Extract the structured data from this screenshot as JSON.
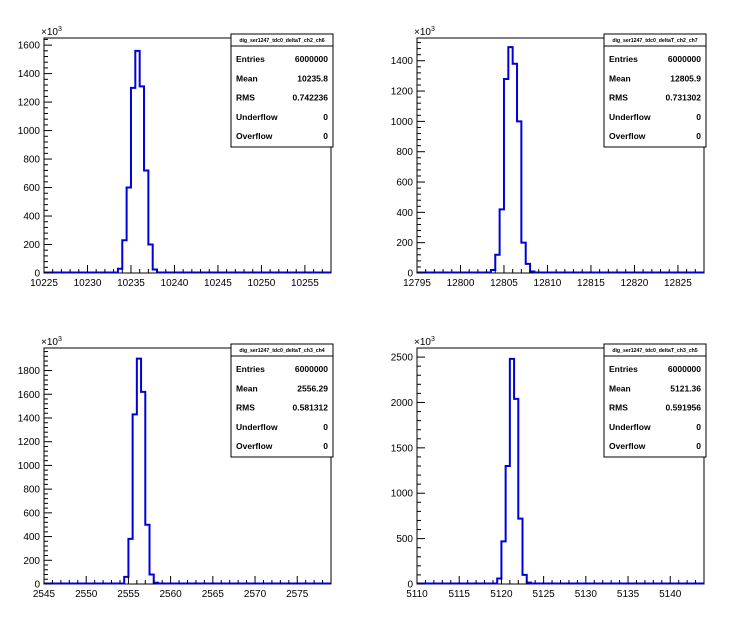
{
  "colors": {
    "histogram": "#0000dd",
    "frame": "#000000"
  },
  "stats_keys": {
    "entries": "Entries",
    "mean": "Mean",
    "rms": "RMS",
    "underflow": "Underflow",
    "overflow": "Overflow"
  },
  "chart_data": [
    {
      "type": "histogram",
      "title": "",
      "stats": {
        "name": "dig_ser1247_tdc0_deltaT_ch2_ch6",
        "entries": "6000000",
        "mean": "10235.8",
        "rms": "0.742236",
        "underflow": "0",
        "overflow": "0"
      },
      "xlim": [
        10225,
        10258
      ],
      "ylim": [
        0,
        1650
      ],
      "y_multiplier": "×10",
      "y_multiplier_exp": "3",
      "xticks": [
        10225,
        10230,
        10235,
        10240,
        10245,
        10250,
        10255
      ],
      "yticks": [
        0,
        200,
        400,
        600,
        800,
        1000,
        1200,
        1400,
        1600
      ],
      "bin_width": 0.5,
      "bins": [
        {
          "x": 10233.5,
          "y": 30
        },
        {
          "x": 10234.0,
          "y": 230
        },
        {
          "x": 10234.5,
          "y": 600
        },
        {
          "x": 10235.0,
          "y": 1300
        },
        {
          "x": 10235.5,
          "y": 1560
        },
        {
          "x": 10236.0,
          "y": 1310
        },
        {
          "x": 10236.5,
          "y": 720
        },
        {
          "x": 10237.0,
          "y": 200
        },
        {
          "x": 10237.5,
          "y": 25
        }
      ]
    },
    {
      "type": "histogram",
      "title": "",
      "stats": {
        "name": "dig_ser1247_tdc0_deltaT_ch2_ch7",
        "entries": "6000000",
        "mean": "12805.9",
        "rms": "0.731302",
        "underflow": "0",
        "overflow": "0"
      },
      "xlim": [
        12795,
        12828
      ],
      "ylim": [
        0,
        1550
      ],
      "y_multiplier": "×10",
      "y_multiplier_exp": "3",
      "xticks": [
        12795,
        12800,
        12805,
        12810,
        12815,
        12820,
        12825
      ],
      "yticks": [
        0,
        200,
        400,
        600,
        800,
        1000,
        1200,
        1400
      ],
      "bin_width": 0.5,
      "bins": [
        {
          "x": 12803.5,
          "y": 20
        },
        {
          "x": 12804.0,
          "y": 120
        },
        {
          "x": 12804.5,
          "y": 420
        },
        {
          "x": 12805.0,
          "y": 1280
        },
        {
          "x": 12805.5,
          "y": 1490
        },
        {
          "x": 12806.0,
          "y": 1380
        },
        {
          "x": 12806.5,
          "y": 1000
        },
        {
          "x": 12807.0,
          "y": 200
        },
        {
          "x": 12807.5,
          "y": 60
        },
        {
          "x": 12808.0,
          "y": 10
        }
      ]
    },
    {
      "type": "histogram",
      "title": "",
      "stats": {
        "name": "dig_ser1247_tdc0_deltaT_ch3_ch4",
        "entries": "6000000",
        "mean": "2556.29",
        "rms": "0.581312",
        "underflow": "0",
        "overflow": "0"
      },
      "xlim": [
        2545,
        2579
      ],
      "ylim": [
        0,
        1990
      ],
      "y_multiplier": "×10",
      "y_multiplier_exp": "3",
      "xticks": [
        2545,
        2550,
        2555,
        2560,
        2565,
        2570,
        2575
      ],
      "yticks": [
        0,
        200,
        400,
        600,
        800,
        1000,
        1200,
        1400,
        1600,
        1800
      ],
      "bin_width": 0.5,
      "bins": [
        {
          "x": 2554.5,
          "y": 60
        },
        {
          "x": 2555.0,
          "y": 380
        },
        {
          "x": 2555.5,
          "y": 1430
        },
        {
          "x": 2556.0,
          "y": 1900
        },
        {
          "x": 2556.5,
          "y": 1620
        },
        {
          "x": 2557.0,
          "y": 500
        },
        {
          "x": 2557.5,
          "y": 80
        },
        {
          "x": 2558.0,
          "y": 10
        }
      ]
    },
    {
      "type": "histogram",
      "title": "",
      "stats": {
        "name": "dig_ser1247_tdc0_deltaT_ch3_ch5",
        "entries": "6000000",
        "mean": "5121.36",
        "rms": "0.591956",
        "underflow": "0",
        "overflow": "0"
      },
      "xlim": [
        5110,
        5144
      ],
      "ylim": [
        0,
        2600
      ],
      "y_multiplier": "×10",
      "y_multiplier_exp": "3",
      "xticks": [
        5110,
        5115,
        5120,
        5125,
        5130,
        5135,
        5140
      ],
      "yticks": [
        0,
        500,
        1000,
        1500,
        2000,
        2500
      ],
      "bin_width": 0.5,
      "bins": [
        {
          "x": 5119.5,
          "y": 60
        },
        {
          "x": 5120.0,
          "y": 470
        },
        {
          "x": 5120.5,
          "y": 1300
        },
        {
          "x": 5121.0,
          "y": 2480
        },
        {
          "x": 5121.5,
          "y": 2040
        },
        {
          "x": 5122.0,
          "y": 720
        },
        {
          "x": 5122.5,
          "y": 100
        },
        {
          "x": 5123.0,
          "y": 15
        }
      ]
    }
  ]
}
